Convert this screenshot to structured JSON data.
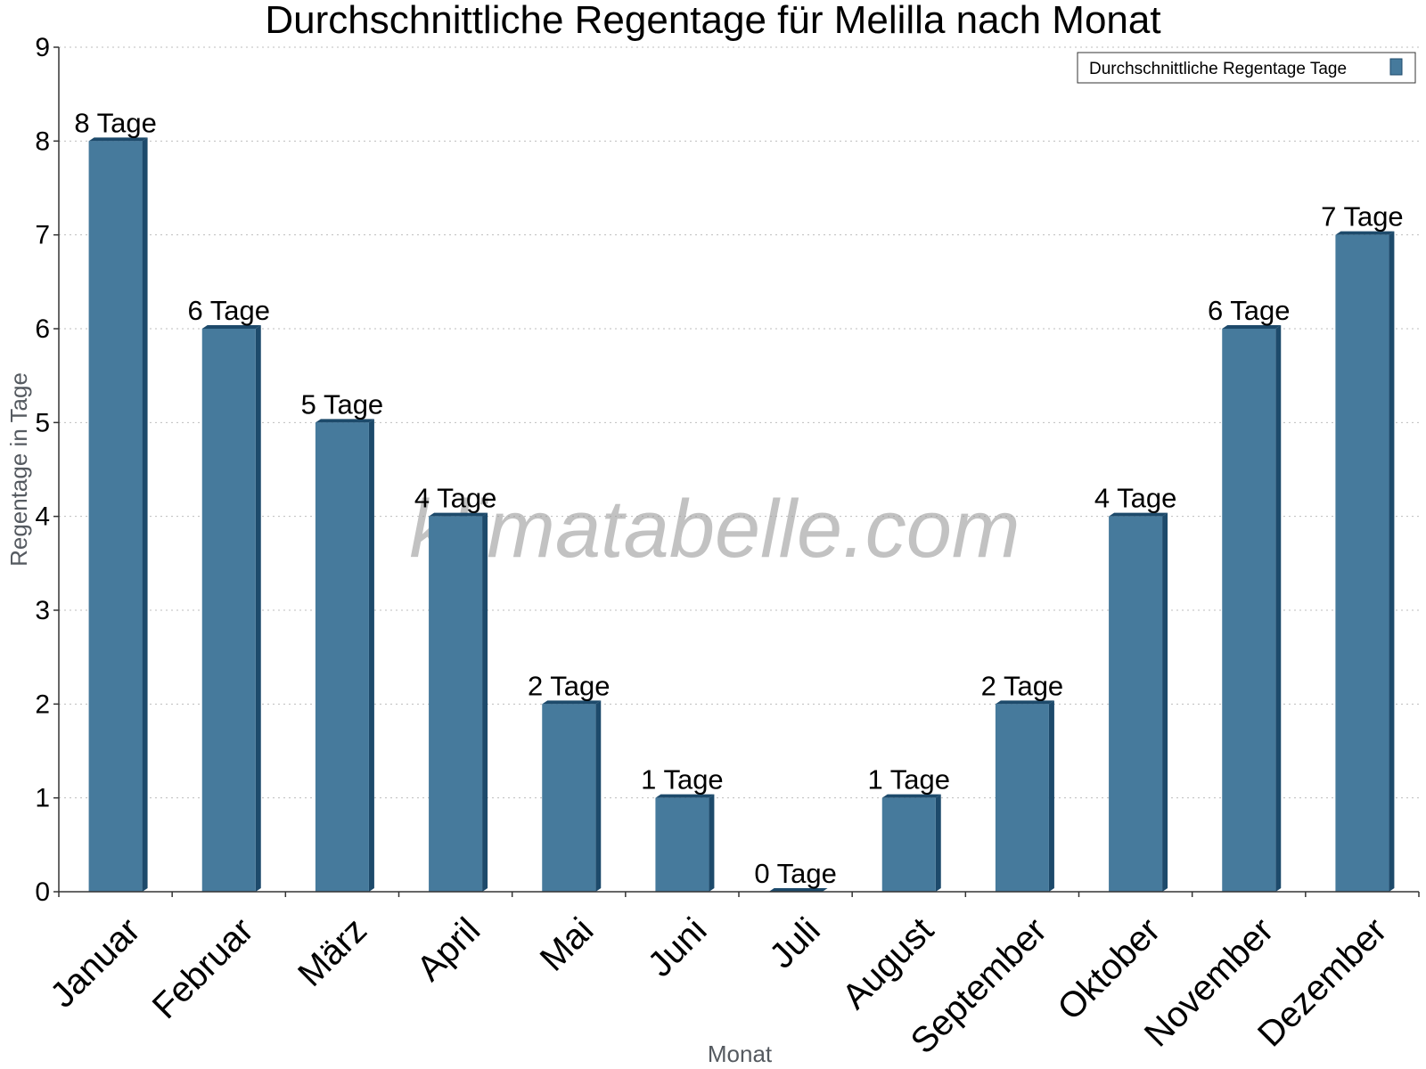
{
  "chart_data": {
    "type": "bar",
    "title": "Durchschnittliche Regentage für Melilla nach Monat",
    "xlabel": "Monat",
    "ylabel": "Regentage in Tage",
    "ylim": [
      0,
      9
    ],
    "yticks": [
      0,
      1,
      2,
      3,
      4,
      5,
      6,
      7,
      8,
      9
    ],
    "grid": true,
    "legend_position": "top-right",
    "categories": [
      "Januar",
      "Februar",
      "März",
      "April",
      "Mai",
      "Juni",
      "Juli",
      "August",
      "September",
      "Oktober",
      "November",
      "Dezember"
    ],
    "series": [
      {
        "name": "Durchschnittliche Regentage Tage",
        "values": [
          8,
          6,
          5,
          4,
          2,
          1,
          0,
          1,
          2,
          4,
          6,
          7
        ],
        "labels": [
          "8 Tage",
          "6 Tage",
          "5 Tage",
          "4 Tage",
          "2 Tage",
          "1 Tage",
          "0 Tage",
          "1 Tage",
          "2 Tage",
          "4 Tage",
          "6 Tage",
          "7 Tage"
        ],
        "color": "#467a9c",
        "side_color": "#1d4a6b"
      }
    ]
  },
  "watermark": "klimatabelle.com"
}
